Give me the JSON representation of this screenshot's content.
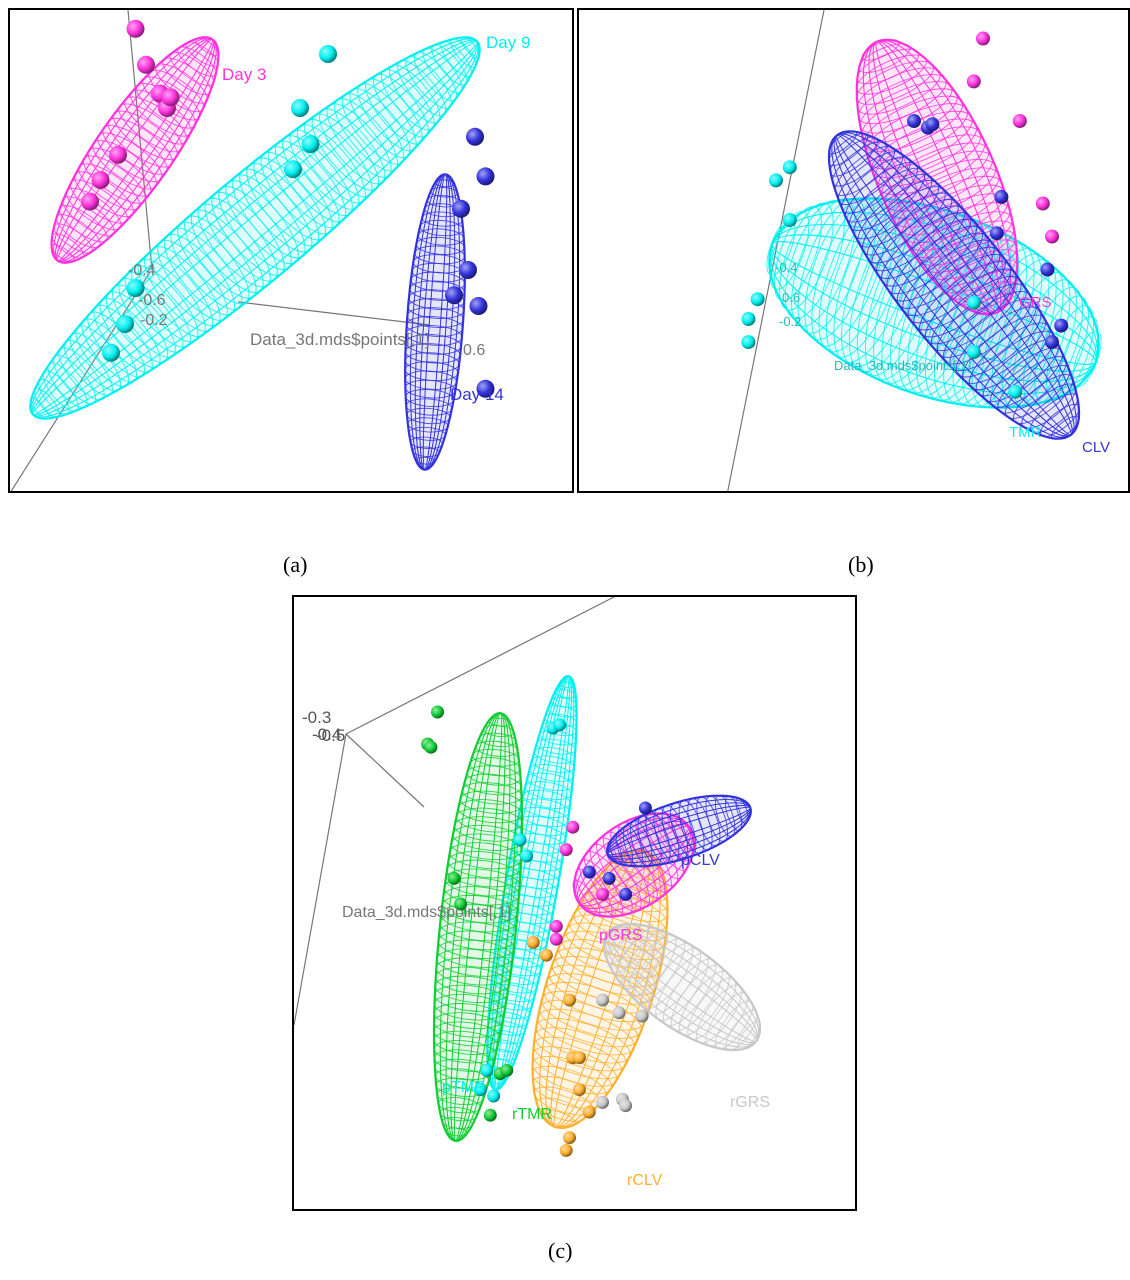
{
  "captions": {
    "a": "(a)",
    "b": "(b)",
    "c": "(c)"
  },
  "colors": {
    "magenta": "#ff33dd",
    "cyan": "#00f0f0",
    "blue": "#3333dd",
    "green": "#11cc33",
    "orange": "#ffb030",
    "gray": "#c8c8c8",
    "axis": "#777777"
  },
  "chart_data": [
    {
      "panel": "a",
      "type": "scatter",
      "axis_label": "Data_3d.mds$points[,1]",
      "tick_labels": [
        "-0.4",
        "-0.6",
        "-0.2",
        "0.6"
      ],
      "series": [
        {
          "name": "Day 3",
          "color": "magenta",
          "points": [
            [
              -0.45,
              0.62
            ],
            [
              -0.42,
              0.52
            ],
            [
              -0.38,
              0.44
            ],
            [
              -0.36,
              0.4
            ],
            [
              -0.35,
              0.43
            ],
            [
              -0.55,
              0.2
            ],
            [
              -0.58,
              0.14
            ],
            [
              -0.5,
              0.27
            ]
          ]
        },
        {
          "name": "Day 9",
          "color": "cyan",
          "points": [
            [
              0.1,
              0.55
            ],
            [
              0.02,
              0.4
            ],
            [
              0.05,
              0.3
            ],
            [
              0.0,
              0.23
            ],
            [
              -0.45,
              -0.1
            ],
            [
              -0.48,
              -0.2
            ],
            [
              -0.52,
              -0.28
            ]
          ]
        },
        {
          "name": "Day 14",
          "color": "blue",
          "points": [
            [
              0.52,
              0.32
            ],
            [
              0.55,
              0.21
            ],
            [
              0.48,
              0.12
            ],
            [
              0.5,
              -0.05
            ],
            [
              0.46,
              -0.12
            ],
            [
              0.53,
              -0.15
            ],
            [
              0.55,
              -0.38
            ]
          ]
        }
      ]
    },
    {
      "panel": "b",
      "type": "scatter",
      "axis_label": "Data_3d.mds$points[,1]",
      "tick_labels": [
        "-0.4",
        "0.6",
        "-0.2"
      ],
      "series": [
        {
          "name": "GRS",
          "color": "magenta",
          "points": [
            [
              0.4,
              0.65
            ],
            [
              0.38,
              0.52
            ],
            [
              0.48,
              0.4
            ],
            [
              0.53,
              0.15
            ],
            [
              0.55,
              0.05
            ]
          ]
        },
        {
          "name": "TMR",
          "color": "cyan",
          "points": [
            [
              -0.05,
              0.22
            ],
            [
              -0.02,
              0.26
            ],
            [
              -0.02,
              0.1
            ],
            [
              -0.09,
              -0.14
            ],
            [
              -0.11,
              -0.2
            ],
            [
              -0.11,
              -0.27
            ],
            [
              0.38,
              -0.15
            ],
            [
              0.38,
              -0.3
            ],
            [
              0.47,
              -0.42
            ]
          ]
        },
        {
          "name": "CLV",
          "color": "blue",
          "points": [
            [
              0.25,
              0.4
            ],
            [
              0.28,
              0.38
            ],
            [
              0.29,
              0.39
            ],
            [
              0.44,
              0.17
            ],
            [
              0.43,
              0.06
            ],
            [
              0.54,
              -0.05
            ],
            [
              0.57,
              -0.22
            ],
            [
              0.55,
              -0.27
            ]
          ]
        }
      ]
    },
    {
      "panel": "c",
      "type": "scatter",
      "axis_label": "Data_3d.mds$points[,1]",
      "tick_labels": [
        "-0.3",
        "-0.5",
        "-0.4"
      ],
      "series": [
        {
          "name": "pTMR",
          "color": "cyan",
          "points": [
            [
              0.3,
              0.55
            ],
            [
              0.32,
              0.56
            ],
            [
              0.2,
              0.2
            ],
            [
              0.22,
              0.15
            ],
            [
              0.1,
              -0.52
            ],
            [
              0.08,
              -0.58
            ],
            [
              0.12,
              -0.6
            ]
          ]
        },
        {
          "name": "rTMR",
          "color": "green",
          "points": [
            [
              -0.05,
              0.6
            ],
            [
              -0.08,
              0.5
            ],
            [
              -0.07,
              0.49
            ],
            [
              0.0,
              0.08
            ],
            [
              0.02,
              0.0
            ],
            [
              0.14,
              -0.53
            ],
            [
              0.16,
              -0.52
            ],
            [
              0.11,
              -0.66
            ]
          ]
        },
        {
          "name": "rCLV",
          "color": "orange",
          "points": [
            [
              0.24,
              -0.12
            ],
            [
              0.28,
              -0.16
            ],
            [
              0.35,
              -0.3
            ],
            [
              0.36,
              -0.48
            ],
            [
              0.38,
              -0.48
            ],
            [
              0.38,
              -0.58
            ],
            [
              0.41,
              -0.65
            ],
            [
              0.34,
              -0.77
            ],
            [
              0.35,
              -0.73
            ]
          ]
        },
        {
          "name": "rGRS",
          "color": "gray",
          "points": [
            [
              0.45,
              -0.3
            ],
            [
              0.5,
              -0.34
            ],
            [
              0.57,
              -0.35
            ],
            [
              0.51,
              -0.61
            ],
            [
              0.52,
              -0.63
            ],
            [
              0.45,
              -0.62
            ]
          ]
        },
        {
          "name": "pGRS",
          "color": "magenta",
          "points": [
            [
              0.36,
              0.24
            ],
            [
              0.34,
              0.17
            ],
            [
              0.31,
              -0.07
            ],
            [
              0.45,
              0.03
            ],
            [
              0.31,
              -0.11
            ]
          ]
        },
        {
          "name": "pCLV",
          "color": "blue",
          "points": [
            [
              0.58,
              0.3
            ],
            [
              0.41,
              0.1
            ],
            [
              0.47,
              0.08
            ],
            [
              0.52,
              0.03
            ]
          ]
        }
      ]
    }
  ]
}
